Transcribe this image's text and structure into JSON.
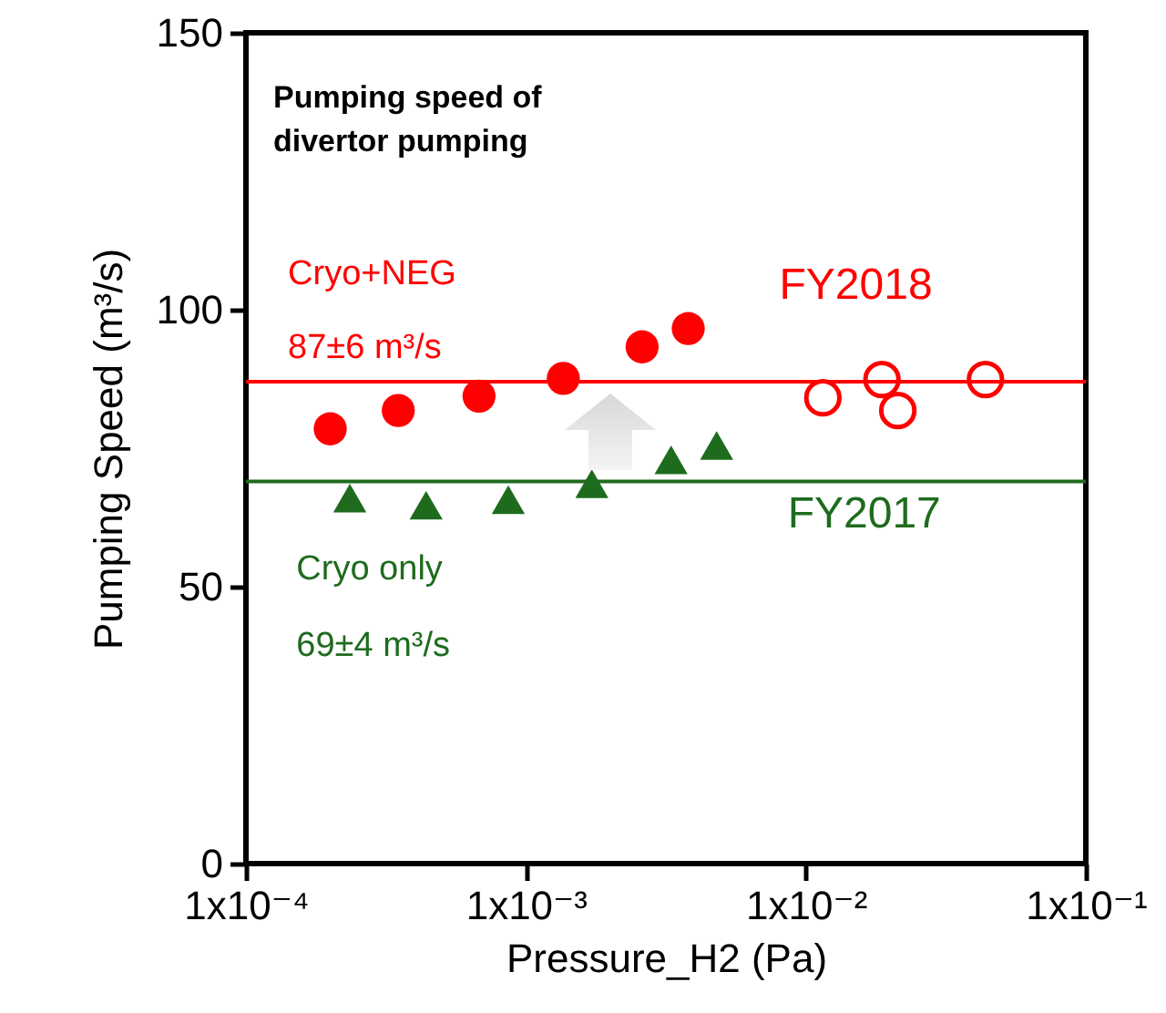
{
  "chart_data": {
    "type": "scatter",
    "title": "Pumping speed of divertor pumping",
    "xlabel": "Pressure_H2 (Pa)",
    "ylabel": "Pumping Speed (m³/s)",
    "log": "x",
    "xlim": [
      0.0001,
      0.1
    ],
    "ylim": [
      0,
      150
    ],
    "xticks": [
      {
        "value": 0.0001,
        "label": "1x10⁻⁴"
      },
      {
        "value": 0.001,
        "label": "1x10⁻³"
      },
      {
        "value": 0.01,
        "label": "1x10⁻²"
      },
      {
        "value": 0.1,
        "label": "1x10⁻¹"
      }
    ],
    "yticks": [
      0,
      50,
      100,
      150
    ],
    "series": [
      {
        "color": "#ff0000",
        "marker": "circle",
        "x": [
          0.0002,
          0.00035,
          0.00068,
          0.00136,
          0.0026,
          0.0038
        ],
        "values": [
          78.5,
          81.8,
          84.4,
          87.6,
          93.3,
          96.6
        ]
      },
      {
        "color": "#ff0000",
        "marker": "circle",
        "x": [
          0.0115,
          0.0187,
          0.0213,
          0.0438
        ],
        "values": [
          84.1,
          87.4,
          81.8,
          87.4
        ]
      },
      {
        "color": "#1e6b1e",
        "marker": "triangle",
        "x": [
          0.000235,
          0.00044,
          0.000865,
          0.00172,
          0.0033,
          0.0048
        ],
        "values": [
          66.0,
          64.7,
          65.7,
          68.6,
          72.9,
          75.5
        ]
      }
    ],
    "ref_lines": [
      {
        "axis": "y",
        "value": 87,
        "color": "#ff0000",
        "label": "87±6 m³/s"
      },
      {
        "axis": "y",
        "value": 69,
        "color": "#1e6b1e",
        "label": "69±4 m³/s"
      }
    ],
    "annotations": [
      "FY2018",
      "Cryo+NEG",
      "FY2017",
      "Cryo only"
    ],
    "grid": false
  }
}
